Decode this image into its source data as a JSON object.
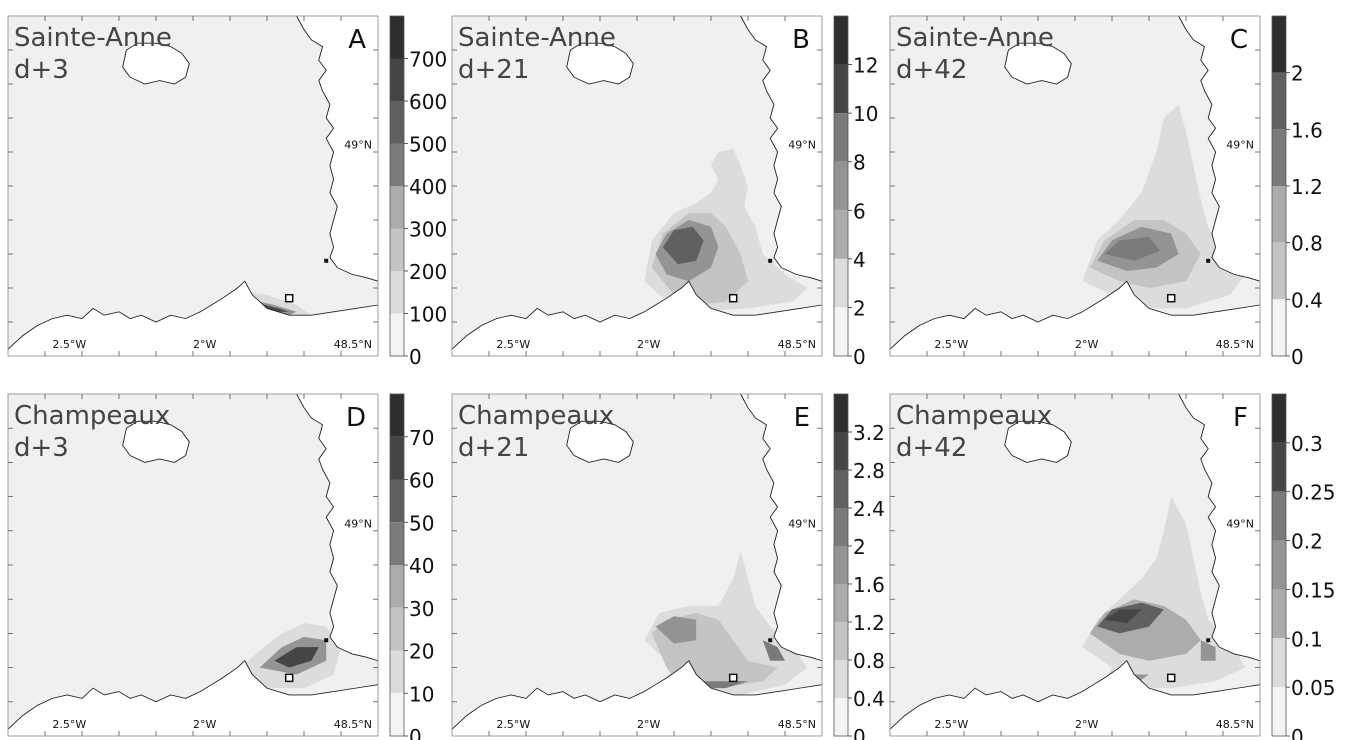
{
  "panels": [
    {
      "id": "A",
      "site": "Sainte-Anne",
      "day": "d+3",
      "colorbar": {
        "ticks": [
          "700",
          "600",
          "500",
          "400",
          "300",
          "200",
          "100",
          "0"
        ]
      }
    },
    {
      "id": "B",
      "site": "Sainte-Anne",
      "day": "d+21",
      "colorbar": {
        "ticks": [
          "12",
          "10",
          "8",
          "6",
          "4",
          "2",
          "0"
        ]
      }
    },
    {
      "id": "C",
      "site": "Sainte-Anne",
      "day": "d+42",
      "colorbar": {
        "ticks": [
          "2",
          "1.6",
          "1.2",
          "0.8",
          "0.4",
          "0"
        ]
      }
    },
    {
      "id": "D",
      "site": "Champeaux",
      "day": "d+3",
      "colorbar": {
        "ticks": [
          "70",
          "60",
          "50",
          "40",
          "30",
          "20",
          "10",
          "0"
        ]
      }
    },
    {
      "id": "E",
      "site": "Champeaux",
      "day": "d+21",
      "colorbar": {
        "ticks": [
          "3.2",
          "2.8",
          "2.4",
          "2",
          "1.6",
          "1.2",
          "0.8",
          "0.4",
          "0"
        ]
      }
    },
    {
      "id": "F",
      "site": "Champeaux",
      "day": "d+42",
      "colorbar": {
        "ticks": [
          "0.3",
          "0.25",
          "0.2",
          "0.15",
          "0.1",
          "0.05",
          "0"
        ]
      }
    }
  ],
  "map_labels": {
    "lon1": "2.5°W",
    "lon2": "2°W",
    "lat1": "48.5°N",
    "lat2": "49°N"
  },
  "colors": {
    "sea": "#f0f0f0",
    "land": "#ffffff",
    "coast": "#222222",
    "ramp": [
      "#f4f4f4",
      "#dcdcdc",
      "#c4c4c4",
      "#acacac",
      "#949494",
      "#7a7a7a",
      "#606060",
      "#454545",
      "#2e2e2e"
    ]
  },
  "chart_data": [
    {
      "type": "heatmap",
      "panel": "A",
      "title": "Sainte-Anne d+3",
      "colorbar_ticks": [
        700,
        600,
        500,
        400,
        300,
        200,
        100,
        0
      ],
      "xticks": [
        "2.5°W",
        "2°W"
      ],
      "yticks": [
        "48.5°N",
        "49°N"
      ]
    },
    {
      "type": "heatmap",
      "panel": "B",
      "title": "Sainte-Anne d+21",
      "colorbar_ticks": [
        12,
        10,
        8,
        6,
        4,
        2,
        0
      ],
      "xticks": [
        "2.5°W",
        "2°W"
      ],
      "yticks": [
        "48.5°N",
        "49°N"
      ]
    },
    {
      "type": "heatmap",
      "panel": "C",
      "title": "Sainte-Anne d+42",
      "colorbar_ticks": [
        2,
        1.6,
        1.2,
        0.8,
        0.4,
        0
      ],
      "xticks": [
        "2.5°W",
        "2°W"
      ],
      "yticks": [
        "48.5°N",
        "49°N"
      ]
    },
    {
      "type": "heatmap",
      "panel": "D",
      "title": "Champeaux d+3",
      "colorbar_ticks": [
        70,
        60,
        50,
        40,
        30,
        20,
        10,
        0
      ],
      "xticks": [
        "2.5°W",
        "2°W"
      ],
      "yticks": [
        "48.5°N",
        "49°N"
      ]
    },
    {
      "type": "heatmap",
      "panel": "E",
      "title": "Champeaux d+21",
      "colorbar_ticks": [
        3.2,
        2.8,
        2.4,
        2,
        1.6,
        1.2,
        0.8,
        0.4,
        0
      ],
      "xticks": [
        "2.5°W",
        "2°W"
      ],
      "yticks": [
        "48.5°N",
        "49°N"
      ]
    },
    {
      "type": "heatmap",
      "panel": "F",
      "title": "Champeaux d+42",
      "colorbar_ticks": [
        0.3,
        0.25,
        0.2,
        0.15,
        0.1,
        0.05,
        0
      ],
      "xticks": [
        "2.5°W",
        "2°W"
      ],
      "yticks": [
        "48.5°N",
        "49°N"
      ]
    }
  ]
}
